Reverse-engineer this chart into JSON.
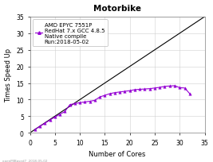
{
  "title": "Motorbike",
  "xlabel": "Number of Cores",
  "ylabel": "Times Speed Up",
  "legend_lines": [
    "AMD EPYC 7551P",
    "RedHat 7.x GCC 4.8.5",
    "Native compile",
    "Run:2018-05-02"
  ],
  "xlim": [
    0,
    35
  ],
  "ylim": [
    0,
    35
  ],
  "xticks": [
    0,
    5,
    10,
    15,
    20,
    25,
    30,
    35
  ],
  "yticks": [
    0,
    5,
    10,
    15,
    20,
    25,
    30,
    35
  ],
  "cores": [
    1,
    2,
    3,
    4,
    5,
    6,
    7,
    8,
    9,
    10,
    11,
    12,
    13,
    14,
    15,
    16,
    17,
    18,
    19,
    20,
    21,
    22,
    23,
    24,
    25,
    26,
    27,
    28,
    29,
    30,
    31,
    32
  ],
  "speedup": [
    1.0,
    1.97,
    2.9,
    3.85,
    4.75,
    5.6,
    6.4,
    8.5,
    8.8,
    9.1,
    9.3,
    9.5,
    9.8,
    10.8,
    11.3,
    11.8,
    12.1,
    12.3,
    12.5,
    12.7,
    13.0,
    13.1,
    13.2,
    13.3,
    13.5,
    13.7,
    14.0,
    14.1,
    14.2,
    13.6,
    13.5,
    11.8
  ],
  "line_color": "#9400D3",
  "marker": "^",
  "marker_size": 2.5,
  "ideal_color": "#000000",
  "background_color": "#ffffff",
  "axes_background": "#ffffff",
  "font_size": 6,
  "title_font_size": 7.5,
  "watermark": "openMIBased7  2018-05-02"
}
